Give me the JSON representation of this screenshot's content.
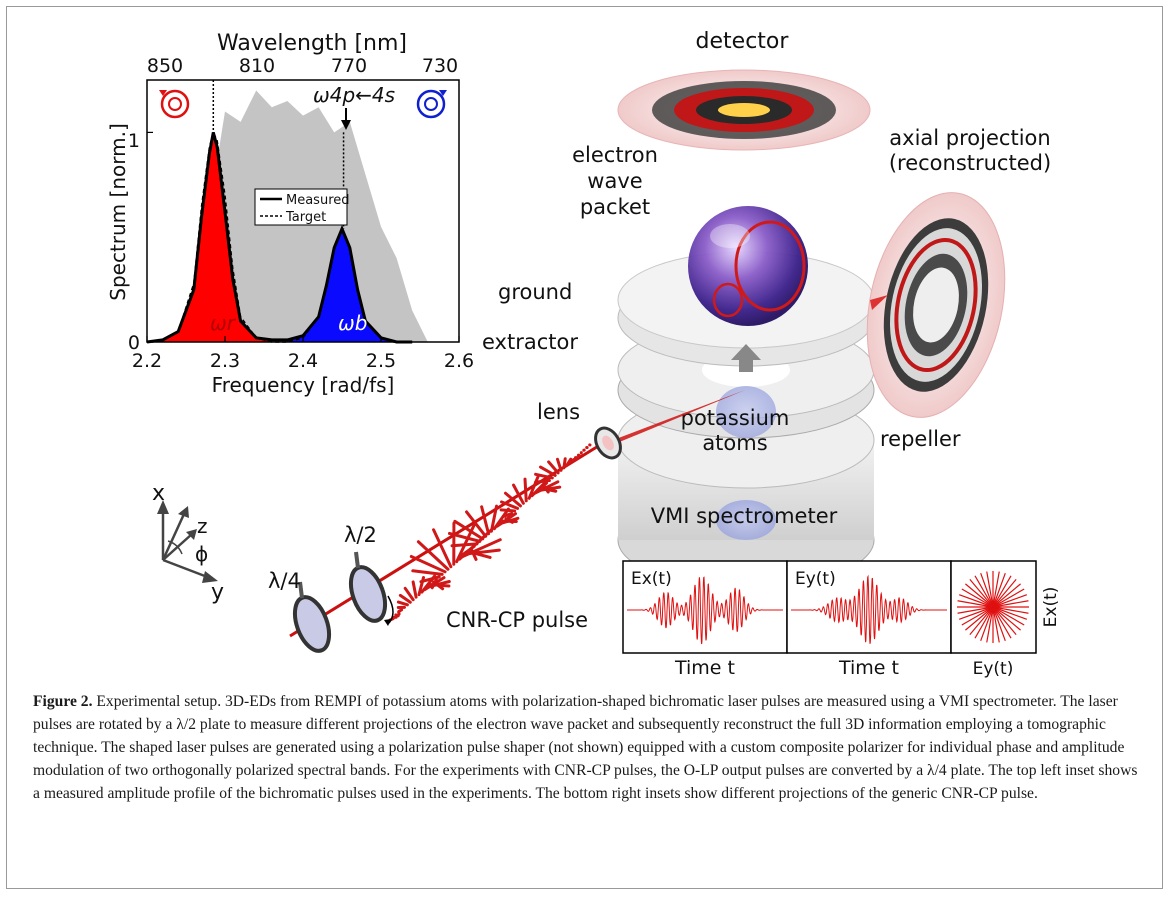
{
  "figure": {
    "spectrum": {
      "top_axis_label": "Wavelength [nm]",
      "top_ticks": [
        "850",
        "810",
        "770",
        "730"
      ],
      "bottom_axis_label": "Frequency [rad/fs]",
      "bottom_ticks": [
        "2.2",
        "2.3",
        "2.4",
        "2.5",
        "2.6"
      ],
      "y_axis_label": "Spectrum [norm.]",
      "y_ticks": [
        "0",
        "1"
      ],
      "legend_measured": "Measured",
      "legend_target": "Target",
      "transition_label": "ω4p←4s",
      "omega_r": "ωr",
      "omega_b": "ωb"
    },
    "labels": {
      "detector": "detector",
      "axial_line1": "axial projection",
      "axial_line2": "(reconstructed)",
      "wave_line1": "electron",
      "wave_line2": "wave",
      "wave_line3": "packet",
      "ground": "ground",
      "extractor": "extractor",
      "lens": "lens",
      "atoms_line1": "potassium",
      "atoms_line2": "atoms",
      "repeller": "repeller",
      "vmi": "VMI spectrometer",
      "quarter_wave": "λ/4",
      "half_wave": "λ/2",
      "pulse": "CNR-CP pulse",
      "axis_x": "x",
      "axis_y": "y",
      "axis_z": "z",
      "axis_phi": "ϕ"
    },
    "insets": {
      "ex_label": "Ex(t)",
      "ey_label": "Ey(t)",
      "time1": "Time t",
      "time2": "Time t",
      "polar_ex": "Ex(t)",
      "polar_ey": "Ey(t)"
    }
  },
  "chart_data": {
    "type": "area",
    "title": "",
    "xlabel": "Frequency [rad/fs]",
    "ylabel": "Spectrum [norm.]",
    "secondary_xlabel": "Wavelength [nm]",
    "xlim": [
      2.2,
      2.6
    ],
    "ylim": [
      0,
      1.25
    ],
    "legend": "top-center",
    "x": [
      2.2,
      2.22,
      2.24,
      2.26,
      2.27,
      2.28,
      2.285,
      2.29,
      2.3,
      2.31,
      2.32,
      2.34,
      2.36,
      2.38,
      2.4,
      2.42,
      2.43,
      2.44,
      2.45,
      2.46,
      2.47,
      2.48,
      2.5,
      2.52,
      2.54
    ],
    "series": [
      {
        "name": "Measured",
        "values": [
          0,
          0.01,
          0.05,
          0.25,
          0.6,
          0.9,
          1.0,
          0.93,
          0.62,
          0.3,
          0.1,
          0.02,
          0.01,
          0.01,
          0.03,
          0.12,
          0.27,
          0.45,
          0.54,
          0.45,
          0.25,
          0.1,
          0.02,
          0.0,
          0.0
        ]
      },
      {
        "name": "Target",
        "values": [
          0,
          0.01,
          0.05,
          0.28,
          0.65,
          0.93,
          1.0,
          0.96,
          0.7,
          0.35,
          0.12,
          0.02,
          0.0,
          0.0,
          0.02,
          0.12,
          0.27,
          0.45,
          0.54,
          0.45,
          0.25,
          0.1,
          0.02,
          0.0,
          0.0
        ]
      }
    ],
    "gray_background_x": [
      2.25,
      2.27,
      2.3,
      2.32,
      2.34,
      2.36,
      2.38,
      2.4,
      2.42,
      2.44,
      2.46,
      2.48,
      2.5,
      2.52,
      2.54,
      2.56
    ],
    "gray_background_y": [
      0.0,
      0.4,
      1.1,
      1.05,
      1.2,
      1.12,
      1.15,
      1.08,
      1.12,
      1.0,
      1.05,
      0.8,
      0.55,
      0.4,
      0.15,
      0.0
    ]
  },
  "caption": {
    "label": "Figure 2.",
    "text": " Experimental setup. 3D-EDs from REMPI of potassium atoms with polarization-shaped bichromatic laser pulses are measured using a VMI spectrometer. The laser pulses are rotated by a λ/2 plate to measure different projections of the electron wave packet and subsequently reconstruct the full 3D information employing a tomographic technique. The shaped laser pulses are generated using a polarization pulse shaper (not shown) equipped with a custom composite polarizer for individual phase and amplitude modulation of two orthogonally polarized spectral bands. For the experiments with CNR-CP pulses, the O-LP output pulses are converted by a λ/4 plate. The top left inset shows a measured amplitude profile of the bichromatic pulses used in the experiments. The bottom right insets show different projections of the generic CNR-CP pulse."
  }
}
